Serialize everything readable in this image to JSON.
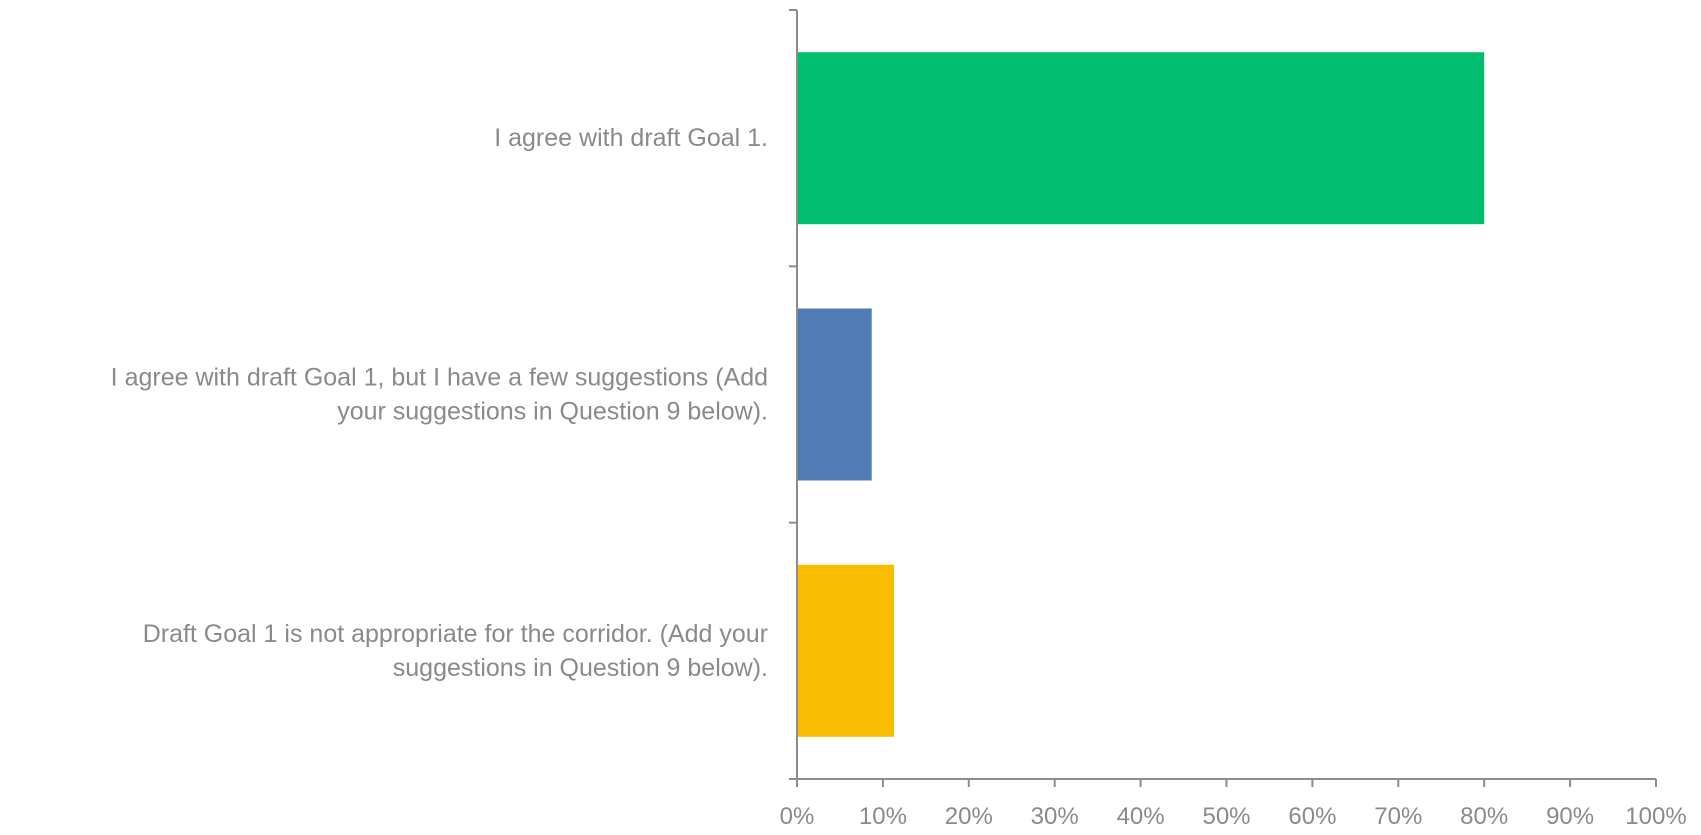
{
  "chart_data": {
    "type": "bar",
    "orientation": "horizontal",
    "categories": [
      [
        "I agree with draft Goal 1."
      ],
      [
        "I agree with draft Goal 1, but I have a few suggestions (Add",
        "your suggestions in Question 9 below)."
      ],
      [
        "Draft Goal 1 is not appropriate for the corridor. (Add your",
        "suggestions in Question 9 below)."
      ]
    ],
    "series": [
      {
        "values": [
          0.8,
          0.087,
          0.113
        ]
      }
    ],
    "bar_colors": [
      "#00BE6E",
      "#4F7CB5",
      "#F8BC00"
    ],
    "x_ticks": [
      "0%",
      "10%",
      "20%",
      "30%",
      "40%",
      "50%",
      "60%",
      "70%",
      "80%",
      "90%",
      "100%"
    ],
    "xlim": [
      0,
      1
    ],
    "grid": false,
    "legend": "none"
  }
}
